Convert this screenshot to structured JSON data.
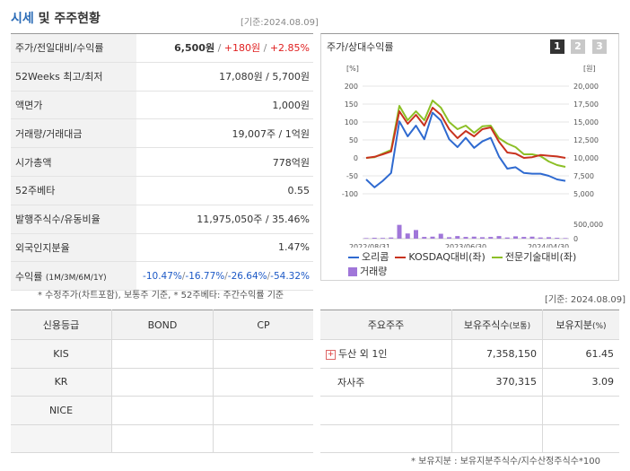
{
  "header": {
    "title_main": "시세",
    "title_rest": " 및 주주현황",
    "as_of": "[기준:2024.08.09]"
  },
  "stock_rows": [
    {
      "label": "주가/전일대비/수익률",
      "v1": "6,500원",
      "v2": "+180원",
      "v3": "+2.85%"
    },
    {
      "label": "52Weeks 최고/최저",
      "value": "17,080원 / 5,700원"
    },
    {
      "label": "액면가",
      "value": "1,000원"
    },
    {
      "label": "거래량/거래대금",
      "value": "19,007주 / 1억원"
    },
    {
      "label": "시가총액",
      "value": "778억원"
    },
    {
      "label": "52주베타",
      "value": "0.55"
    },
    {
      "label": "발행주식수/유동비율",
      "value": "11,975,050주 / 35.46%"
    },
    {
      "label": "외국인지분율",
      "value": "1.47%"
    },
    {
      "label": "수익률",
      "label_sub": "(1M/3M/6M/1Y)",
      "r1": "-10.47%",
      "r2": "-16.77%",
      "r3": "-26.64%",
      "r4": "-54.32%"
    }
  ],
  "footnote": "* 수정주가(차트포함), 보통주 기준, * 52주베타: 주간수익률 기준",
  "chart_panel": {
    "title": "주가/상대수익률",
    "pages": [
      "1",
      "2",
      "3"
    ],
    "active_page": "1"
  },
  "chart_data": {
    "type": "line",
    "left_axis_unit": "[%]",
    "right_axis_unit": "[원]",
    "left_ticks": [
      "200",
      "150",
      "100",
      "50",
      "0",
      "-50",
      "-100"
    ],
    "right_ticks": [
      "20,000",
      "17,500",
      "15,000",
      "12,500",
      "10,000",
      "7,500",
      "5,000"
    ],
    "volume_ticks": [
      "500,000",
      "0"
    ],
    "x_labels": [
      "2022/08/31",
      "2023/06/30",
      "2024/04/30"
    ],
    "ylim_left": [
      -100,
      200
    ],
    "ylim_right": [
      5000,
      20000
    ],
    "series": [
      {
        "name": "오리콤",
        "color": "#2f6ad0",
        "axis": "right",
        "values": [
          7000,
          5900,
          6800,
          7900,
          15100,
          13000,
          14500,
          12600,
          16300,
          15200,
          12600,
          11500,
          12800,
          11400,
          12300,
          12800,
          10200,
          8500,
          8700,
          7900,
          7800,
          7800,
          7500,
          7000,
          6800
        ]
      },
      {
        "name": "KOSDAQ대비(좌)",
        "color": "#c8321e",
        "axis": "left",
        "values": [
          0,
          3,
          10,
          18,
          130,
          95,
          120,
          90,
          140,
          120,
          80,
          55,
          75,
          60,
          80,
          85,
          45,
          15,
          12,
          0,
          2,
          8,
          6,
          4,
          0
        ]
      },
      {
        "name": "전문기술대비(좌)",
        "color": "#8cbf26",
        "axis": "left",
        "values": [
          0,
          2,
          12,
          22,
          145,
          105,
          130,
          105,
          160,
          140,
          100,
          80,
          90,
          70,
          88,
          90,
          55,
          40,
          30,
          10,
          10,
          5,
          -10,
          -20,
          -25
        ]
      }
    ],
    "volume": {
      "name": "거래량",
      "color": "#a076d9",
      "values": [
        20000,
        30000,
        25000,
        40000,
        480000,
        180000,
        300000,
        60000,
        70000,
        170000,
        50000,
        90000,
        60000,
        70000,
        50000,
        60000,
        90000,
        40000,
        80000,
        60000,
        70000,
        40000,
        50000,
        30000,
        20000
      ]
    }
  },
  "credit": {
    "headers": [
      "신용등급",
      "BOND",
      "CP"
    ],
    "rows": [
      {
        "agency": "KIS",
        "bond": "",
        "cp": ""
      },
      {
        "agency": "KR",
        "bond": "",
        "cp": ""
      },
      {
        "agency": "NICE",
        "bond": "",
        "cp": ""
      },
      {
        "agency": "",
        "bond": "",
        "cp": ""
      }
    ]
  },
  "holders": {
    "as_of": "[기준: 2024.08.09]",
    "headers": [
      "주요주주",
      "보유주식수",
      "(보통)",
      "보유지분",
      "(%)"
    ],
    "rows": [
      {
        "name": "두산 외 1인",
        "shares": "7,358,150",
        "pct": "61.45",
        "expand": "+"
      },
      {
        "name": "자사주",
        "shares": "370,315",
        "pct": "3.09"
      },
      {
        "name": "",
        "shares": "",
        "pct": ""
      },
      {
        "name": "",
        "shares": "",
        "pct": ""
      }
    ],
    "footnote": "* 보유지분 : 보유지분주식수/지수산정주식수*100"
  }
}
